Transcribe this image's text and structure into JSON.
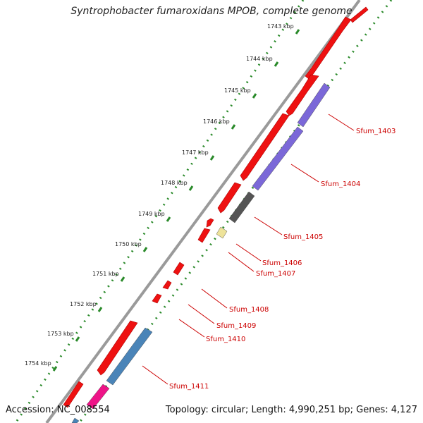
{
  "title": "Syntrophobacter fumaroxidans MPOB, complete genome",
  "footer": {
    "accession": "Accession: NC_008554",
    "stats": "Topology: circular; Length: 4,990,251 bp; Genes: 4,127"
  },
  "colors": {
    "background": "#ffffff",
    "backbone": "#8c8c8c",
    "cds_forward": "#ee1111",
    "tick_green": "#2a8a2a",
    "label_red": "#cc0000"
  },
  "scale": {
    "unit": "kbp",
    "labels": [
      "1743 kbp",
      "1744 kbp",
      "1745 kbp",
      "1746 kbp",
      "1747 kbp",
      "1748 kbp",
      "1749 kbp",
      "1750 kbp",
      "1751 kbp",
      "1752 kbp",
      "1753 kbp",
      "1754 kbp"
    ]
  },
  "genes": [
    {
      "name": "Sfum_1403",
      "color": "#7b68d8"
    },
    {
      "name": "Sfum_1404",
      "color": "#7b68d8"
    },
    {
      "name": "Sfum_1405",
      "color": "#555555"
    },
    {
      "name": "Sfum_1406",
      "color": "#eee39a"
    },
    {
      "name": "Sfum_1407",
      "color": "#ee1111"
    },
    {
      "name": "Sfum_1408",
      "color": "#ee1111"
    },
    {
      "name": "Sfum_1409",
      "color": "#ee1111"
    },
    {
      "name": "Sfum_1410",
      "color": "#ee1111"
    },
    {
      "name": "Sfum_1411",
      "color": "#4a84b8"
    }
  ]
}
